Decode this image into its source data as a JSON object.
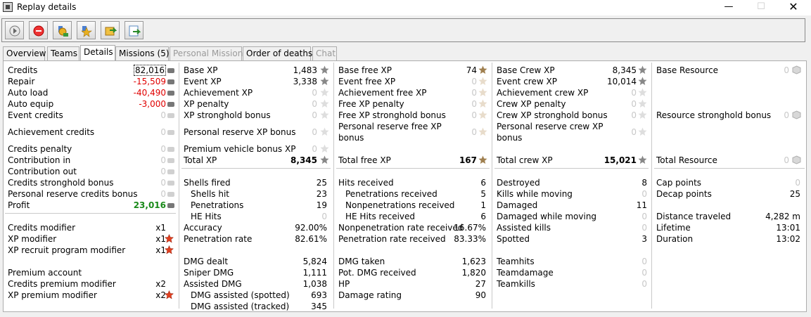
{
  "window": {
    "title": "Replay details",
    "min_icon": "minimize-icon",
    "max_icon": "maximize-icon",
    "close_icon": "close-icon"
  },
  "toolbar": {
    "buttons": [
      "play-icon",
      "stop-icon",
      "badge-icon",
      "star-badge-icon",
      "export-icon",
      "export-alt-icon"
    ]
  },
  "tabs": [
    {
      "label": "Overview"
    },
    {
      "label": "Teams"
    },
    {
      "label": "Details"
    },
    {
      "label": "Missions (5)"
    },
    {
      "label": "Personal Mission"
    },
    {
      "label": "Order of deaths"
    },
    {
      "label": "Chat"
    }
  ],
  "credits": {
    "credits": {
      "label": "Credits",
      "value": "82,016"
    },
    "repair": {
      "label": "Repair",
      "value": "-15,509"
    },
    "auto_load": {
      "label": "Auto load",
      "value": "-40,490"
    },
    "auto_equip": {
      "label": "Auto equip",
      "value": "-3,000"
    },
    "event_credits": {
      "label": "Event credits",
      "value": "0"
    },
    "achievement_credits": {
      "label": "Achievement credits",
      "value": "0"
    },
    "credits_penalty": {
      "label": "Credits penalty",
      "value": "0"
    },
    "contribution_in": {
      "label": "Contribution in",
      "value": "0"
    },
    "contribution_out": {
      "label": "Contribution out",
      "value": "0"
    },
    "stronghold_bonus": {
      "label": "Credits stronghold bonus",
      "value": "0"
    },
    "personal_reserve": {
      "label": "Personal reserve credits bonus",
      "value": "0"
    },
    "profit": {
      "label": "Profit",
      "value": "23,016"
    },
    "credits_modifier": {
      "label": "Credits modifier",
      "value": "x1"
    },
    "xp_modifier": {
      "label": "XP modifier",
      "value": "x1"
    },
    "xp_recruit": {
      "label": "XP recruit program modifier",
      "value": "x1"
    },
    "premium_account": {
      "label": "Premium account"
    },
    "credits_premium_modifier": {
      "label": "Credits premium modifier",
      "value": "x2"
    },
    "xp_premium_modifier": {
      "label": "XP premium modifier",
      "value": "x2"
    }
  },
  "xp": {
    "base_xp": {
      "label": "Base XP",
      "value": "1,483"
    },
    "event_xp": {
      "label": "Event XP",
      "value": "3,338"
    },
    "achievement_xp": {
      "label": "Achievement XP",
      "value": "0"
    },
    "xp_penalty": {
      "label": "XP penalty",
      "value": "0"
    },
    "stronghold": {
      "label": "XP stronghold bonus",
      "value": "0"
    },
    "personal_reserve": {
      "label": "Personal reserve XP bonus",
      "value": "0"
    },
    "premium_vehicle": {
      "label": "Premium vehicle bonus XP",
      "value": "0"
    },
    "total_xp": {
      "label": "Total XP",
      "value": "8,345"
    },
    "shells_fired": {
      "label": "Shells fired",
      "value": "25"
    },
    "shells_hit": {
      "label": "Shells hit",
      "value": "23"
    },
    "penetrations": {
      "label": "Penetrations",
      "value": "19"
    },
    "he_hits": {
      "label": "HE Hits",
      "value": "0"
    },
    "accuracy": {
      "label": "Accuracy",
      "value": "92.00%"
    },
    "penetration_rate": {
      "label": "Penetration rate",
      "value": "82.61%"
    },
    "dmg_dealt": {
      "label": "DMG dealt",
      "value": "5,824"
    },
    "sniper_dmg": {
      "label": "Sniper DMG",
      "value": "1,111"
    },
    "assisted_dmg": {
      "label": "Assisted DMG",
      "value": "1,038"
    },
    "assisted_spotted": {
      "label": "DMG assisted (spotted)",
      "value": "693"
    },
    "assisted_tracked": {
      "label": "DMG assisted (tracked)",
      "value": "345"
    }
  },
  "free_xp": {
    "base_free_xp": {
      "label": "Base free XP",
      "value": "74"
    },
    "event_free_xp": {
      "label": "Event free XP",
      "value": "0"
    },
    "achievement_free_xp": {
      "label": "Achievement free XP",
      "value": "0"
    },
    "free_xp_penalty": {
      "label": "Free XP penalty",
      "value": "0"
    },
    "stronghold": {
      "label": "Free XP stronghold bonus",
      "value": "0"
    },
    "personal_reserve_1": {
      "label": "Personal reserve free XP"
    },
    "personal_reserve_2": {
      "label": "bonus",
      "value": "0"
    },
    "total_free_xp": {
      "label": "Total free XP",
      "value": "167"
    },
    "hits_received": {
      "label": "Hits received",
      "value": "6"
    },
    "penetrations_received": {
      "label": "Penetrations received",
      "value": "5"
    },
    "nonpenetrations_received": {
      "label": "Nonpenetrations received",
      "value": "1"
    },
    "he_hits_received": {
      "label": "HE Hits received",
      "value": "6"
    },
    "nonpen_rate": {
      "label": "Nonpenetration rate received",
      "value": "16.67%"
    },
    "pen_rate": {
      "label": "Penetration rate received",
      "value": "83.33%"
    },
    "dmg_taken": {
      "label": "DMG taken",
      "value": "1,623"
    },
    "pot_dmg": {
      "label": "Pot. DMG received",
      "value": "1,820"
    },
    "hp": {
      "label": "HP",
      "value": "27"
    },
    "damage_rating": {
      "label": "Damage rating",
      "value": "90"
    }
  },
  "crew": {
    "base_crew_xp": {
      "label": "Base Crew XP",
      "value": "8,345"
    },
    "event_crew_xp": {
      "label": "Event crew XP",
      "value": "10,014"
    },
    "achievement_crew_xp": {
      "label": "Achievement crew XP",
      "value": "0"
    },
    "crew_xp_penalty": {
      "label": "Crew XP penalty",
      "value": "0"
    },
    "stronghold": {
      "label": "Crew XP stronghold bonus",
      "value": "0"
    },
    "personal_reserve_1": {
      "label": "Personal reserve crew XP"
    },
    "personal_reserve_2": {
      "label": "bonus",
      "value": "0"
    },
    "total_crew_xp": {
      "label": "Total crew XP",
      "value": "15,021"
    },
    "destroyed": {
      "label": "Destroyed",
      "value": "8"
    },
    "kills_moving": {
      "label": "Kills while moving",
      "value": "0"
    },
    "damaged": {
      "label": "Damaged",
      "value": "11"
    },
    "damaged_moving": {
      "label": "Damaged while moving",
      "value": "0"
    },
    "assisted_kills": {
      "label": "Assisted kills",
      "value": "0"
    },
    "spotted": {
      "label": "Spotted",
      "value": "3"
    },
    "teamhits": {
      "label": "Teamhits",
      "value": "0"
    },
    "teamdamage": {
      "label": "Teamdamage",
      "value": "0"
    },
    "teamkills": {
      "label": "Teamkills",
      "value": "0"
    }
  },
  "resource": {
    "base_resource": {
      "label": "Base Resource",
      "value": "0"
    },
    "stronghold": {
      "label": "Resource stronghold bonus",
      "value": "0"
    },
    "total_resource": {
      "label": "Total Resource",
      "value": "0"
    },
    "cap_points": {
      "label": "Cap points",
      "value": "0"
    },
    "decap_points": {
      "label": "Decap points",
      "value": "25"
    },
    "distance": {
      "label": "Distance traveled",
      "value": "4,282 m"
    },
    "lifetime": {
      "label": "Lifetime",
      "value": "13:01"
    },
    "duration": {
      "label": "Duration",
      "value": "13:02"
    }
  },
  "colors": {
    "negative": "#e00000",
    "profit": "#1a8a1a",
    "zero": "#c8c8c8"
  }
}
